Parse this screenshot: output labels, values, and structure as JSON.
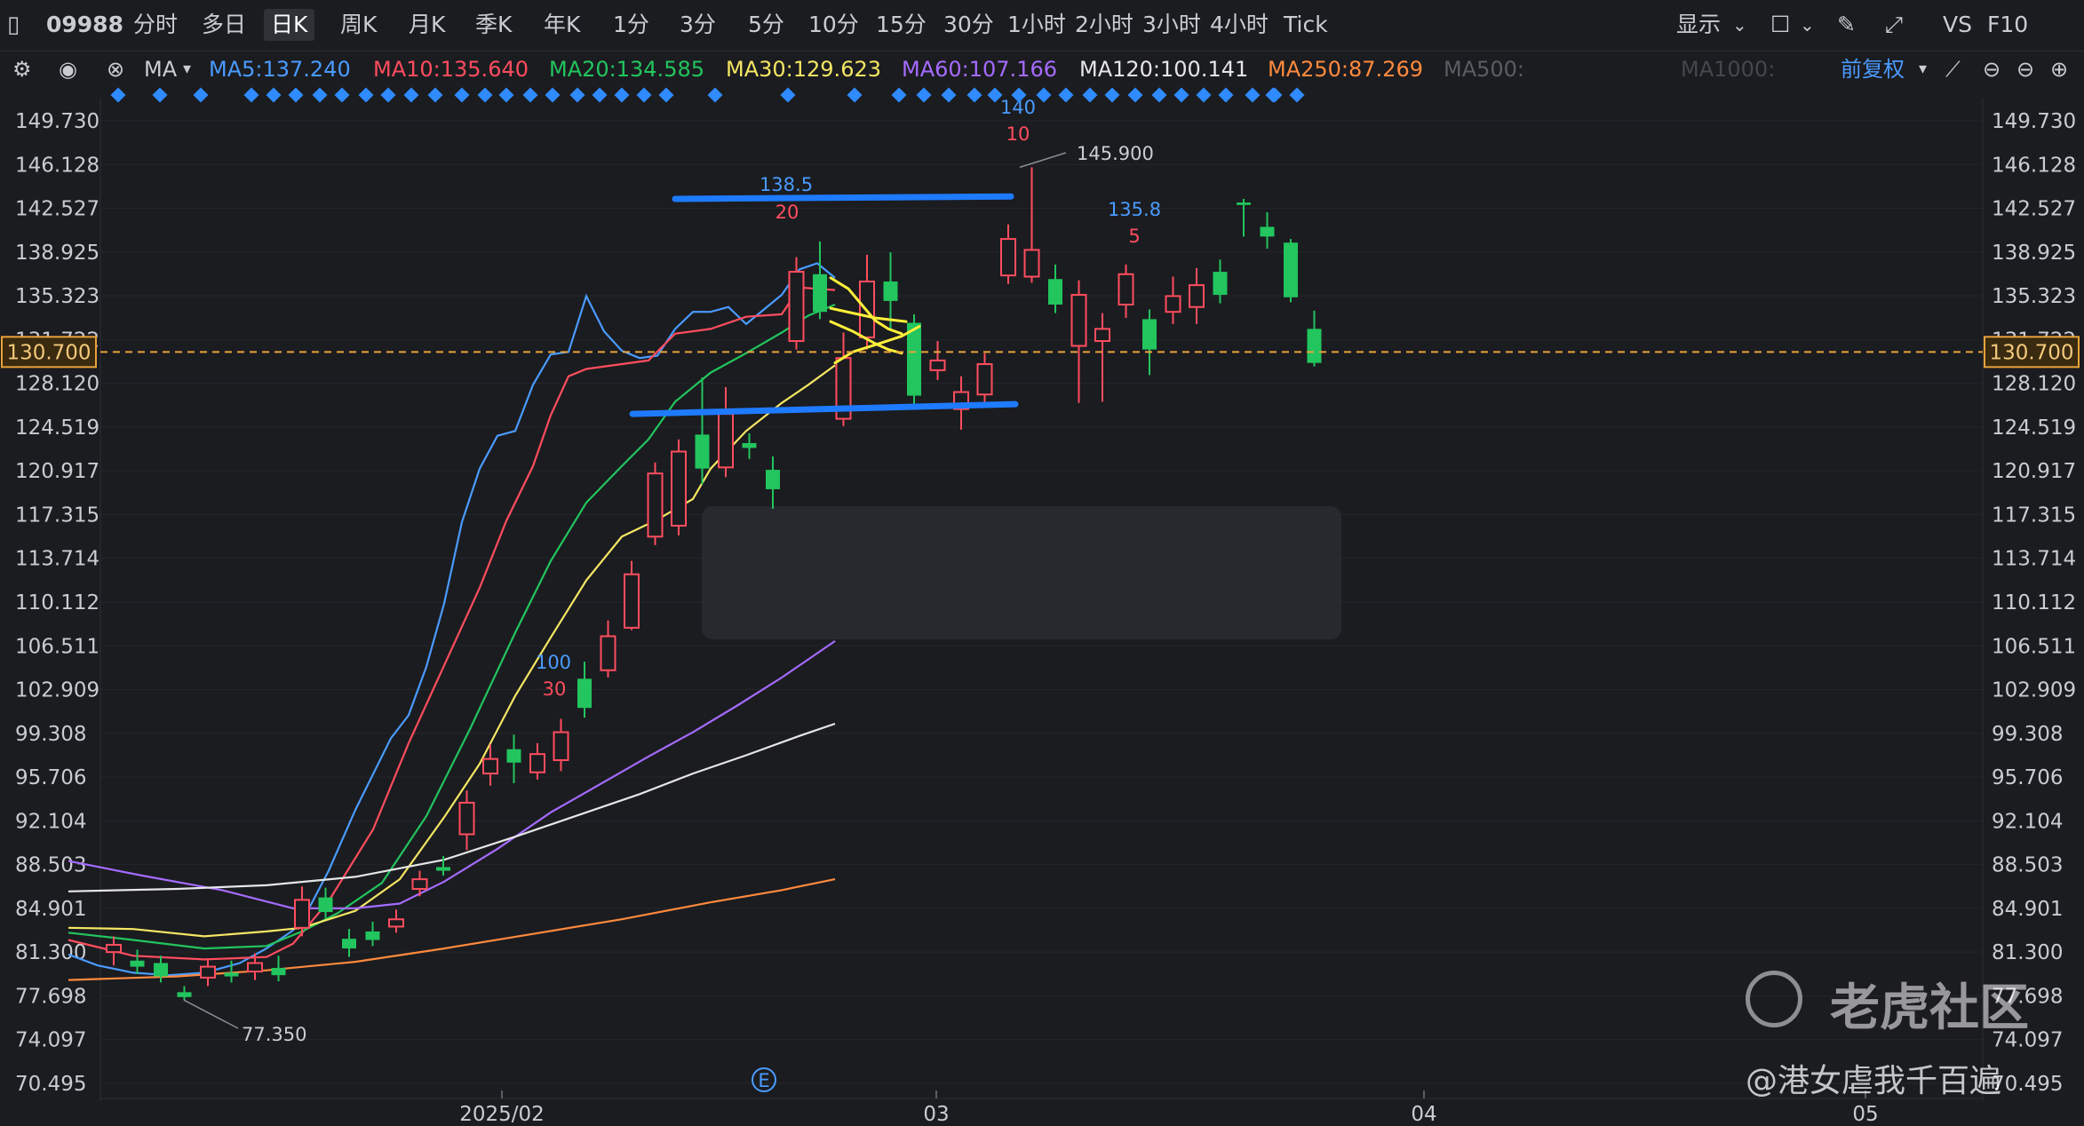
{
  "toolbar": {
    "symbol": "09988",
    "periods": [
      "分时",
      "多日",
      "日K",
      "周K",
      "月K",
      "季K",
      "年K",
      "1分",
      "3分",
      "5分",
      "10分",
      "15分",
      "30分",
      "1小时",
      "2小时",
      "3小时",
      "4小时",
      "Tick"
    ],
    "active_period": "日K",
    "display_label": "显示",
    "vs_label": "VS",
    "f10_label": "F10"
  },
  "ma_bar": {
    "ma_label": "MA",
    "adjust_label": "前复权",
    "indicators": [
      {
        "label": "MA5:137.240",
        "color": "#4a9bff"
      },
      {
        "label": "MA10:135.640",
        "color": "#ff4d5e"
      },
      {
        "label": "MA20:134.585",
        "color": "#22c55e"
      },
      {
        "label": "MA30:129.623",
        "color": "#f5e663"
      },
      {
        "label": "MA60:107.166",
        "color": "#a56bff"
      },
      {
        "label": "MA120:100.141",
        "color": "#e6e6e6"
      },
      {
        "label": "MA250:87.269",
        "color": "#ff8a3d"
      },
      {
        "label": "MA500:",
        "color": "#5a5d63"
      },
      {
        "label": "MA1000:",
        "color": "#44474d"
      }
    ]
  },
  "current_price": "130.700",
  "annotations": {
    "high_price": "145.900",
    "low_price": "77.350",
    "pt1_top": "140",
    "pt1_bot": "10",
    "pt2_top": "138.5",
    "pt2_bot": "20",
    "pt3_top": "135.8",
    "pt3_bot": "5",
    "pt4_top": "100",
    "pt4_bot": "30",
    "event_marker": "E"
  },
  "watermark": {
    "brand": "老虎社区",
    "handle": "@港女虐我千百遍"
  },
  "chart_data": {
    "type": "candlestick",
    "ylim": [
      70.495,
      149.73
    ],
    "y_ticks": [
      "149.730",
      "146.128",
      "142.527",
      "138.925",
      "135.323",
      "131.722",
      "128.120",
      "124.519",
      "120.917",
      "117.315",
      "113.714",
      "110.112",
      "106.511",
      "102.909",
      "99.308",
      "95.706",
      "92.104",
      "88.503",
      "84.901",
      "81.300",
      "77.698",
      "74.097",
      "70.495"
    ],
    "x_labels": [
      "2025/02",
      "03",
      "04",
      "05"
    ],
    "candles": [
      {
        "o": 81.3,
        "c": 81.9,
        "h": 82.6,
        "l": 80.2
      },
      {
        "o": 80.6,
        "c": 80.1,
        "h": 81.5,
        "l": 79.5
      },
      {
        "o": 80.4,
        "c": 79.3,
        "h": 81.0,
        "l": 78.8
      },
      {
        "o": 78.0,
        "c": 77.6,
        "h": 78.5,
        "l": 77.35
      },
      {
        "o": 79.2,
        "c": 80.1,
        "h": 80.8,
        "l": 78.5
      },
      {
        "o": 79.6,
        "c": 79.3,
        "h": 80.6,
        "l": 78.8
      },
      {
        "o": 79.7,
        "c": 80.4,
        "h": 81.2,
        "l": 79.0
      },
      {
        "o": 80.0,
        "c": 79.4,
        "h": 81.0,
        "l": 78.9
      },
      {
        "o": 83.3,
        "c": 85.6,
        "h": 86.7,
        "l": 82.6
      },
      {
        "o": 85.8,
        "c": 84.6,
        "h": 86.6,
        "l": 84.1
      },
      {
        "o": 82.4,
        "c": 81.6,
        "h": 83.2,
        "l": 80.9
      },
      {
        "o": 83.0,
        "c": 82.3,
        "h": 83.8,
        "l": 81.8
      },
      {
        "o": 83.4,
        "c": 84.0,
        "h": 84.8,
        "l": 82.9
      },
      {
        "o": 86.5,
        "c": 87.3,
        "h": 88.0,
        "l": 85.9
      },
      {
        "o": 88.3,
        "c": 88.0,
        "h": 89.2,
        "l": 87.6
      },
      {
        "o": 91.0,
        "c": 93.6,
        "h": 94.6,
        "l": 89.7
      },
      {
        "o": 96.0,
        "c": 97.2,
        "h": 98.4,
        "l": 95.0
      },
      {
        "o": 98.0,
        "c": 96.9,
        "h": 99.2,
        "l": 95.2
      },
      {
        "o": 96.1,
        "c": 97.6,
        "h": 98.5,
        "l": 95.5
      },
      {
        "o": 97.1,
        "c": 99.4,
        "h": 100.5,
        "l": 96.2
      },
      {
        "o": 103.8,
        "c": 101.4,
        "h": 105.2,
        "l": 100.6
      },
      {
        "o": 104.5,
        "c": 107.3,
        "h": 108.6,
        "l": 103.9
      },
      {
        "o": 108.0,
        "c": 112.4,
        "h": 113.5,
        "l": 107.8
      },
      {
        "o": 115.5,
        "c": 120.7,
        "h": 121.6,
        "l": 114.8
      },
      {
        "o": 116.4,
        "c": 122.5,
        "h": 123.5,
        "l": 115.6
      },
      {
        "o": 123.9,
        "c": 121.1,
        "h": 128.6,
        "l": 119.8
      },
      {
        "o": 121.2,
        "c": 125.6,
        "h": 127.8,
        "l": 120.4
      },
      {
        "o": 123.2,
        "c": 122.8,
        "h": 124.0,
        "l": 121.9
      },
      {
        "o": 121.0,
        "c": 119.4,
        "h": 122.1,
        "l": 117.8
      },
      {
        "o": 131.6,
        "c": 137.3,
        "h": 138.5,
        "l": 130.9
      },
      {
        "o": 137.1,
        "c": 134.0,
        "h": 139.8,
        "l": 133.4
      },
      {
        "o": 125.2,
        "c": 130.2,
        "h": 132.3,
        "l": 124.6
      },
      {
        "o": 131.9,
        "c": 136.5,
        "h": 138.7,
        "l": 130.9
      },
      {
        "o": 136.5,
        "c": 134.9,
        "h": 138.9,
        "l": 132.6
      },
      {
        "o": 133.1,
        "c": 127.1,
        "h": 133.8,
        "l": 126.4
      },
      {
        "o": 129.2,
        "c": 130.0,
        "h": 131.6,
        "l": 128.4
      },
      {
        "o": 126.0,
        "c": 127.4,
        "h": 128.7,
        "l": 124.3
      },
      {
        "o": 127.2,
        "c": 129.7,
        "h": 130.6,
        "l": 126.2
      },
      {
        "o": 137.0,
        "c": 140.0,
        "h": 141.2,
        "l": 136.3
      },
      {
        "o": 136.9,
        "c": 139.1,
        "h": 145.9,
        "l": 136.4
      },
      {
        "o": 136.7,
        "c": 134.6,
        "h": 137.9,
        "l": 133.9
      },
      {
        "o": 131.2,
        "c": 135.4,
        "h": 136.6,
        "l": 126.5
      },
      {
        "o": 131.6,
        "c": 132.6,
        "h": 133.9,
        "l": 126.6
      },
      {
        "o": 134.6,
        "c": 137.1,
        "h": 137.9,
        "l": 133.5
      },
      {
        "o": 133.4,
        "c": 130.9,
        "h": 134.2,
        "l": 128.8
      },
      {
        "o": 134.0,
        "c": 135.3,
        "h": 136.9,
        "l": 133.0
      },
      {
        "o": 134.4,
        "c": 136.2,
        "h": 137.6,
        "l": 133.0
      },
      {
        "o": 137.3,
        "c": 135.4,
        "h": 138.3,
        "l": 134.7
      },
      {
        "o": 143.0,
        "c": 142.8,
        "h": 143.3,
        "l": 140.2
      },
      {
        "o": 141.0,
        "c": 140.2,
        "h": 142.2,
        "l": 139.2
      },
      {
        "o": 139.7,
        "c": 135.2,
        "h": 140.0,
        "l": 134.8
      },
      {
        "o": 132.6,
        "c": 129.8,
        "h": 134.1,
        "l": 129.5
      }
    ],
    "series": [
      {
        "name": "MA5",
        "color": "#4a9bff",
        "points": [
          [
            77,
            81.1
          ],
          [
            110,
            80.2
          ],
          [
            150,
            79.6
          ],
          [
            190,
            79.4
          ],
          [
            230,
            79.6
          ],
          [
            270,
            80.4
          ],
          [
            300,
            81.6
          ],
          [
            330,
            83.1
          ],
          [
            350,
            85.2
          ],
          [
            370,
            88.0
          ],
          [
            400,
            93.0
          ],
          [
            440,
            98.9
          ],
          [
            460,
            100.8
          ],
          [
            480,
            104.8
          ],
          [
            500,
            110.0
          ],
          [
            520,
            116.7
          ],
          [
            540,
            121.1
          ],
          [
            560,
            123.8
          ],
          [
            580,
            124.2
          ],
          [
            600,
            128.0
          ],
          [
            620,
            130.5
          ],
          [
            640,
            130.7
          ],
          [
            660,
            135.3
          ],
          [
            680,
            132.4
          ],
          [
            700,
            130.8
          ],
          [
            720,
            130.2
          ],
          [
            740,
            130.4
          ],
          [
            760,
            132.6
          ],
          [
            780,
            134.0
          ],
          [
            800,
            134.0
          ],
          [
            820,
            134.4
          ],
          [
            840,
            133.0
          ],
          [
            860,
            134.2
          ],
          [
            880,
            135.4
          ],
          [
            900,
            137.5
          ],
          [
            920,
            138.0
          ],
          [
            940,
            136.8
          ]
        ]
      },
      {
        "name": "MA10",
        "color": "#ff4d5e",
        "points": [
          [
            77,
            82.3
          ],
          [
            150,
            81.0
          ],
          [
            230,
            80.7
          ],
          [
            300,
            80.9
          ],
          [
            330,
            82.0
          ],
          [
            370,
            85.5
          ],
          [
            420,
            91.4
          ],
          [
            460,
            98.5
          ],
          [
            500,
            104.9
          ],
          [
            540,
            111.3
          ],
          [
            570,
            116.8
          ],
          [
            600,
            121.3
          ],
          [
            620,
            125.5
          ],
          [
            640,
            128.7
          ],
          [
            660,
            129.3
          ],
          [
            700,
            129.7
          ],
          [
            730,
            130.0
          ],
          [
            760,
            132.2
          ],
          [
            800,
            132.6
          ],
          [
            840,
            133.6
          ],
          [
            880,
            133.8
          ],
          [
            900,
            136.0
          ],
          [
            940,
            135.8
          ]
        ]
      },
      {
        "name": "MA20",
        "color": "#22c55e",
        "points": [
          [
            77,
            82.9
          ],
          [
            150,
            82.3
          ],
          [
            230,
            81.6
          ],
          [
            300,
            81.8
          ],
          [
            340,
            83.0
          ],
          [
            380,
            84.5
          ],
          [
            430,
            87.0
          ],
          [
            480,
            92.5
          ],
          [
            530,
            99.8
          ],
          [
            580,
            107.6
          ],
          [
            620,
            113.5
          ],
          [
            660,
            118.3
          ],
          [
            700,
            121.3
          ],
          [
            730,
            123.5
          ],
          [
            760,
            126.6
          ],
          [
            800,
            129.0
          ],
          [
            840,
            130.6
          ],
          [
            880,
            132.3
          ],
          [
            910,
            133.7
          ],
          [
            940,
            134.6
          ]
        ]
      },
      {
        "name": "MA30",
        "color": "#f5e663",
        "points": [
          [
            77,
            83.3
          ],
          [
            150,
            83.2
          ],
          [
            230,
            82.6
          ],
          [
            300,
            83.0
          ],
          [
            340,
            83.3
          ],
          [
            400,
            84.7
          ],
          [
            450,
            87.3
          ],
          [
            500,
            92.4
          ],
          [
            540,
            96.8
          ],
          [
            580,
            102.4
          ],
          [
            620,
            107.2
          ],
          [
            660,
            111.9
          ],
          [
            700,
            115.5
          ],
          [
            740,
            116.9
          ],
          [
            780,
            118.6
          ],
          [
            800,
            121.1
          ],
          [
            840,
            124.2
          ],
          [
            880,
            126.5
          ],
          [
            910,
            128.0
          ],
          [
            940,
            129.6
          ]
        ]
      },
      {
        "name": "MA60",
        "color": "#a56bff",
        "points": [
          [
            77,
            88.8
          ],
          [
            160,
            87.6
          ],
          [
            250,
            86.4
          ],
          [
            330,
            84.9
          ],
          [
            400,
            84.9
          ],
          [
            450,
            85.3
          ],
          [
            500,
            87.1
          ],
          [
            560,
            89.8
          ],
          [
            620,
            92.8
          ],
          [
            680,
            95.3
          ],
          [
            730,
            97.4
          ],
          [
            780,
            99.4
          ],
          [
            830,
            101.6
          ],
          [
            880,
            103.9
          ],
          [
            910,
            105.4
          ],
          [
            940,
            106.9
          ]
        ]
      },
      {
        "name": "MA120",
        "color": "#e6e6e6",
        "points": [
          [
            77,
            86.3
          ],
          [
            200,
            86.5
          ],
          [
            300,
            86.8
          ],
          [
            400,
            87.5
          ],
          [
            500,
            88.9
          ],
          [
            580,
            90.8
          ],
          [
            640,
            92.3
          ],
          [
            720,
            94.3
          ],
          [
            780,
            96.0
          ],
          [
            840,
            97.5
          ],
          [
            900,
            99.1
          ],
          [
            940,
            100.1
          ]
        ]
      },
      {
        "name": "MA250",
        "color": "#ff8a3d",
        "points": [
          [
            77,
            79.0
          ],
          [
            200,
            79.3
          ],
          [
            300,
            79.8
          ],
          [
            400,
            80.5
          ],
          [
            500,
            81.6
          ],
          [
            600,
            82.8
          ],
          [
            700,
            84.0
          ],
          [
            800,
            85.4
          ],
          [
            880,
            86.4
          ],
          [
            940,
            87.3
          ]
        ]
      }
    ],
    "drawn_lines": [
      {
        "color": "#1e7bff",
        "from": [
          760,
          143.3
        ],
        "to": [
          1138,
          143.5
        ]
      },
      {
        "color": "#1e7bff",
        "from": [
          712,
          125.6
        ],
        "to": [
          1143,
          126.4
        ]
      }
    ],
    "yellow_sketches": [
      [
        [
          935,
          136.8
        ],
        [
          955,
          135.9
        ],
        [
          970,
          134.6
        ],
        [
          985,
          133.3
        ],
        [
          1000,
          132.6
        ],
        [
          1015,
          132.2
        ]
      ],
      [
        [
          935,
          134.3
        ],
        [
          960,
          133.9
        ],
        [
          985,
          133.5
        ],
        [
          1020,
          133.2
        ]
      ],
      [
        [
          940,
          129.8
        ],
        [
          960,
          130.7
        ],
        [
          990,
          131.4
        ],
        [
          1015,
          132.0
        ],
        [
          1035,
          132.8
        ]
      ],
      [
        [
          935,
          133.2
        ],
        [
          960,
          132.4
        ],
        [
          985,
          131.4
        ],
        [
          1000,
          130.9
        ],
        [
          1015,
          130.6
        ]
      ]
    ]
  }
}
